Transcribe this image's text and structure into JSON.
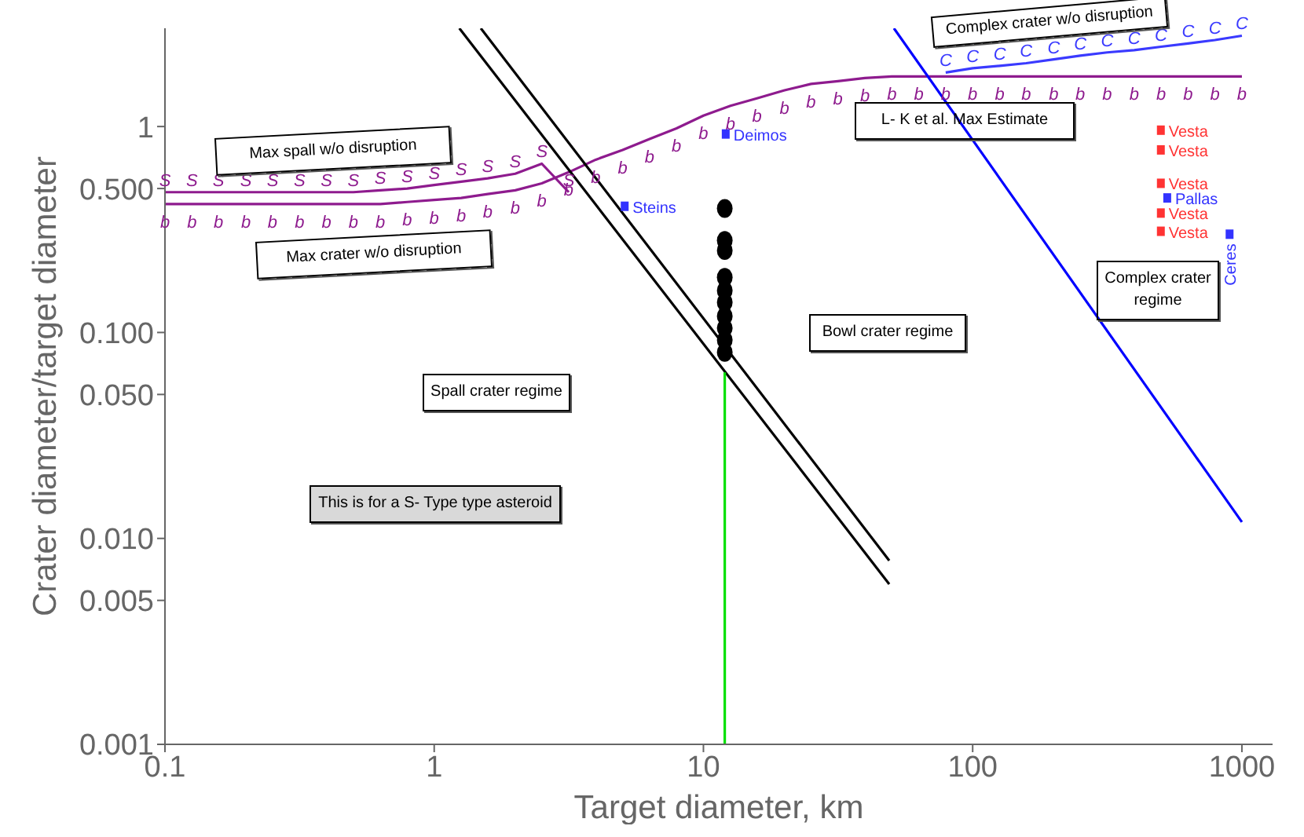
{
  "chart_data": {
    "type": "line",
    "xlabel": "Target diameter, km",
    "ylabel": "Crater diameter/target diameter",
    "log": "xy",
    "xlim": [
      0.1,
      1300
    ],
    "ylim": [
      0.001,
      3
    ],
    "xticks": [
      0.1,
      1,
      10,
      100,
      1000
    ],
    "yticks": [
      0.001,
      0.005,
      {
        "value": 0.01,
        "label": "0.010"
      },
      {
        "value": 0.05,
        "label": "0.050"
      },
      {
        "value": 0.1,
        "label": "0.100"
      },
      {
        "value": 0.5,
        "label": "0.500"
      },
      1
    ],
    "annotations": [
      "Max spall w/o disruption",
      "Max crater w/o disruption",
      "Complex crater w/o disruption",
      "L- K et al. Max Estimate",
      "Complex crater regime",
      "Bowl crater regime",
      "Spall crater regime",
      "This is for a S- Type type asteroid"
    ],
    "series": [
      {
        "type": "line",
        "color": "#8e1b8e",
        "marker": "none",
        "x": [
          0.1,
          0.126,
          0.158,
          0.2,
          0.251,
          0.316,
          0.398,
          0.501,
          0.631,
          0.794,
          1,
          1.26,
          1.58,
          2,
          2.51,
          3.16
        ],
        "values": [
          0.48,
          0.48,
          0.48,
          0.48,
          0.48,
          0.48,
          0.48,
          0.48,
          0.49,
          0.5,
          0.52,
          0.54,
          0.56,
          0.59,
          0.66,
          0.48
        ],
        "value_labels": [
          "S",
          "S",
          "S",
          "S",
          "S",
          "S",
          "S",
          "S",
          "S",
          "S",
          "S",
          "S",
          "S",
          "S",
          "S",
          "S"
        ]
      },
      {
        "type": "line",
        "color": "#8e1b8e",
        "marker": "none",
        "x": [
          0.1,
          0.126,
          0.158,
          0.2,
          0.251,
          0.316,
          0.398,
          0.501,
          0.631,
          0.794,
          1,
          1.26,
          1.58,
          2,
          2.51,
          3.16,
          3.98,
          5.01,
          6.31,
          7.94,
          10,
          12.6,
          15.8,
          20,
          25.1,
          31.6,
          39.8,
          50.1,
          63.1,
          79.4,
          100,
          126,
          158,
          200,
          251,
          316,
          398,
          501,
          631,
          794,
          1000
        ],
        "values": [
          0.42,
          0.42,
          0.42,
          0.42,
          0.42,
          0.42,
          0.42,
          0.42,
          0.42,
          0.43,
          0.44,
          0.45,
          0.47,
          0.49,
          0.53,
          0.6,
          0.69,
          0.77,
          0.87,
          0.98,
          1.13,
          1.26,
          1.37,
          1.5,
          1.61,
          1.66,
          1.72,
          1.75,
          1.75,
          1.75,
          1.75,
          1.75,
          1.75,
          1.75,
          1.75,
          1.75,
          1.75,
          1.75,
          1.75,
          1.75,
          1.75
        ],
        "value_labels": [
          "b",
          "b",
          "b",
          "b",
          "b",
          "b",
          "b",
          "b",
          "b",
          "b",
          "b",
          "b",
          "b",
          "b",
          "b",
          "b",
          "b",
          "b",
          "b",
          "b",
          "b",
          "b",
          "b",
          "b",
          "b",
          "b",
          "b",
          "b",
          "b",
          "b",
          "b",
          "b",
          "b",
          "b",
          "b",
          "b",
          "b",
          "b",
          "b",
          "b",
          "b"
        ]
      },
      {
        "type": "line",
        "color": "#3a3aff",
        "marker": "none",
        "x": [
          79.4,
          100,
          126,
          158,
          200,
          251,
          316,
          398,
          501,
          631,
          794,
          1000
        ],
        "values": [
          1.83,
          1.92,
          1.97,
          2.03,
          2.12,
          2.21,
          2.29,
          2.35,
          2.44,
          2.53,
          2.63,
          2.76
        ],
        "value_labels": [
          "C",
          "C",
          "C",
          "C",
          "C",
          "C",
          "C",
          "C",
          "C",
          "C",
          "C",
          "C"
        ]
      },
      {
        "type": "line",
        "color": "#0000ff",
        "marker": "none",
        "x": [
          51,
          1000
        ],
        "values": [
          3,
          0.012
        ]
      },
      {
        "type": "line",
        "color": "#000000",
        "marker": "none",
        "x": [
          1.24,
          49
        ],
        "values": [
          3,
          0.006
        ]
      },
      {
        "type": "line",
        "color": "#000000",
        "marker": "none",
        "x": [
          1.49,
          49
        ],
        "values": [
          3,
          0.0078
        ]
      },
      {
        "type": "line",
        "color": "#00e000",
        "marker": "none",
        "x": [
          12,
          12
        ],
        "values": [
          0.001,
          0.064
        ]
      },
      {
        "type": "scatter",
        "color": "#000000",
        "marker": "circle",
        "x": [
          12,
          12,
          12,
          12,
          12,
          12,
          12,
          12,
          12,
          12
        ],
        "values": [
          0.4,
          0.28,
          0.25,
          0.185,
          0.16,
          0.14,
          0.12,
          0.105,
          0.092,
          0.08
        ]
      },
      {
        "type": "scatter",
        "color": "#3333ff",
        "marker": "square",
        "x": [
          12.1,
          5.1
        ],
        "values": [
          0.92,
          0.41
        ],
        "value_labels": [
          "Deimos",
          "Steins"
        ]
      },
      {
        "type": "scatter",
        "color": "#ff3333",
        "marker": "square",
        "x": [
          500,
          500,
          500,
          500,
          500
        ],
        "values": [
          0.96,
          0.77,
          0.53,
          0.38,
          0.31
        ],
        "value_labels": [
          "Vesta",
          "Vesta",
          "Vesta",
          "Vesta",
          "Vesta"
        ]
      },
      {
        "type": "scatter",
        "color": "#3333ff",
        "marker": "square",
        "x": [
          528,
          900
        ],
        "values": [
          0.45,
          0.3
        ],
        "value_labels": [
          "Pallas",
          "Ceres"
        ]
      }
    ]
  }
}
